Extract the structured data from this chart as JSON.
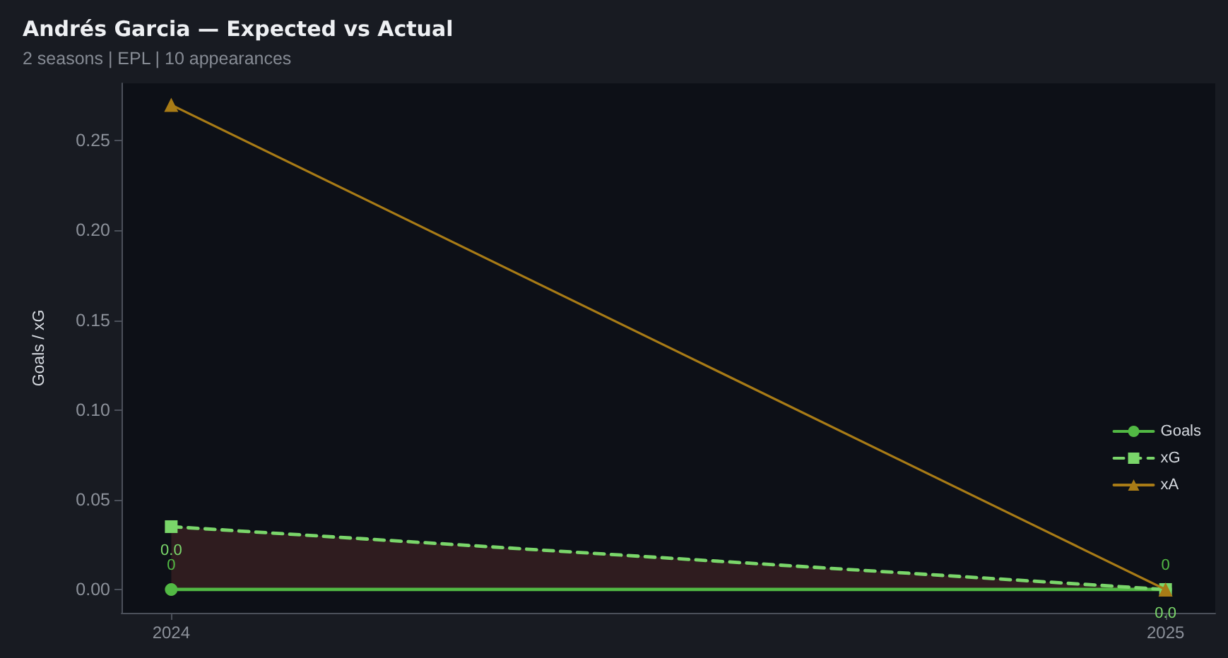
{
  "chart_data": {
    "type": "line",
    "title": "Andrés Garcia — Expected vs Actual",
    "subtitle": "2 seasons | EPL | 10 appearances",
    "ylabel": "Goals / xG",
    "x": [
      2024,
      2025
    ],
    "xlim": [
      2023.95,
      2025.05
    ],
    "xticks": [
      2024,
      2025
    ],
    "ylim": [
      -0.013,
      0.282
    ],
    "yticks": [
      {
        "value": 0,
        "label": "0.00"
      },
      0.05,
      {
        "value": 0.1,
        "label": "0.10"
      },
      0.15,
      {
        "value": 0.2,
        "label": "0.20"
      },
      0.25
    ],
    "series": [
      {
        "name": "Goals",
        "color": "#52b944",
        "values": [
          0,
          0
        ],
        "marker": "circle",
        "line_style": "solid",
        "value_labels": [
          "0",
          "0"
        ]
      },
      {
        "name": "xG",
        "color": "#7ad66a",
        "values": [
          0.035,
          0.0
        ],
        "marker": "square",
        "line_style": "dashed",
        "value_labels": [
          "0.0",
          "0.0"
        ],
        "lower": [
          0,
          0
        ],
        "upper": [
          0.035,
          0.0
        ]
      },
      {
        "name": "xA",
        "color": "#a87b16",
        "values": [
          0.27,
          0
        ],
        "marker": "triangle",
        "line_style": "solid"
      }
    ],
    "legend": "bottom right"
  }
}
